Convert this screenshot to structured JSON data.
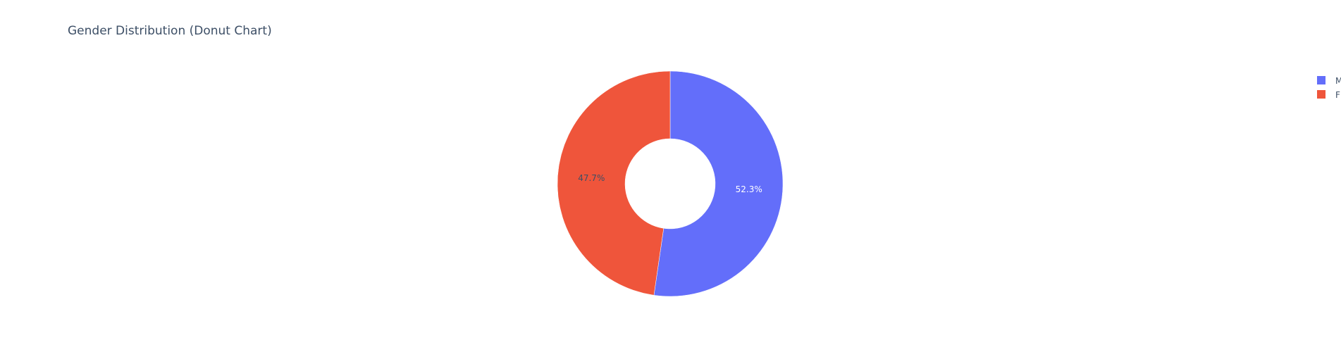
{
  "chart_data": {
    "type": "pie",
    "title": "Gender Distribution (Donut Chart)",
    "hole": 0.4,
    "slices": [
      {
        "label": "M",
        "percent": 52.3,
        "percent_label": "52.3%",
        "color": "#636efa",
        "label_color": "#ffffff"
      },
      {
        "label": "F",
        "percent": 47.7,
        "percent_label": "47.7%",
        "color": "#ef553b",
        "label_color": "#3d4f66"
      }
    ],
    "legend": {
      "placement": "top-right",
      "entries": [
        "M",
        "F"
      ]
    }
  }
}
